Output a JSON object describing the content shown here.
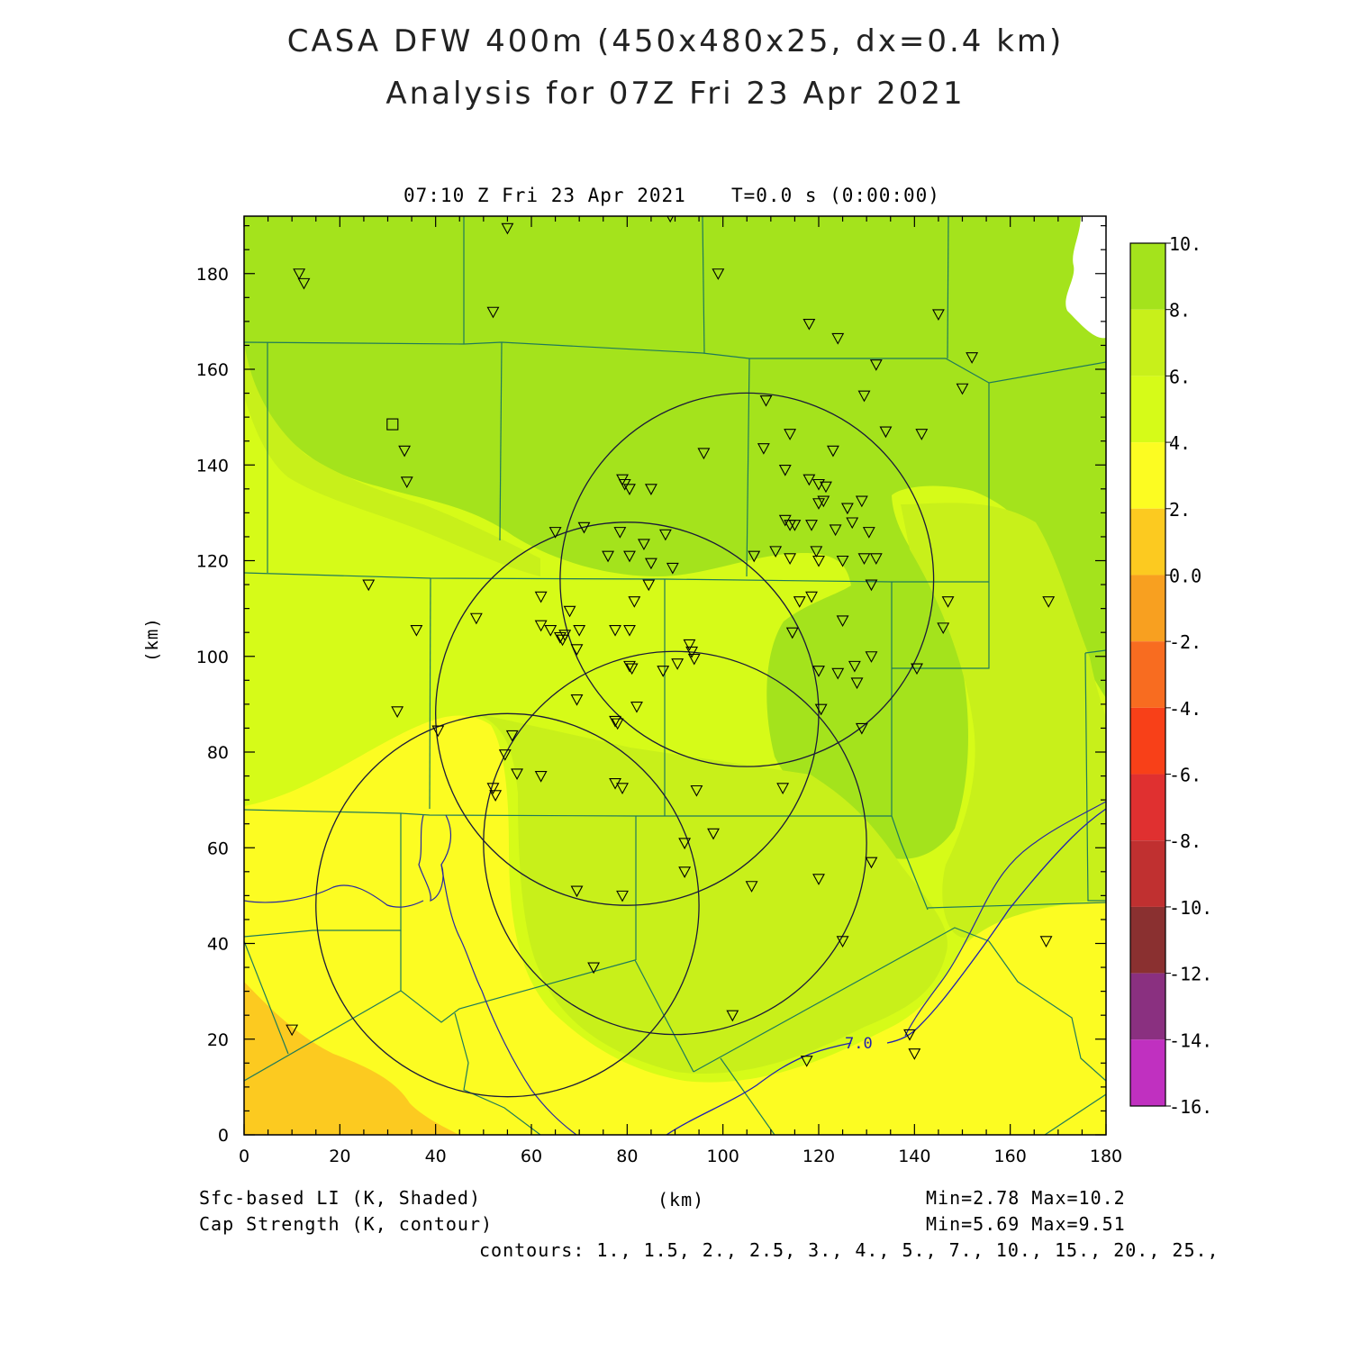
{
  "header": {
    "title_line1": "CASA DFW 400m (450x480x25, dx=0.4 km)",
    "title_line2": "Analysis for 07Z Fri 23 Apr 2021",
    "valid_time": "07:10 Z Fri 23 Apr 2021",
    "model_time": "T=0.0 s (0:00:00)"
  },
  "axes": {
    "x_label": "(km)",
    "y_label": "(km)",
    "x_ticks": [
      "0",
      "20",
      "40",
      "60",
      "80",
      "100",
      "120",
      "140",
      "160",
      "180"
    ],
    "y_ticks": [
      "0",
      "20",
      "40",
      "60",
      "80",
      "100",
      "120",
      "140",
      "160",
      "180"
    ],
    "x_range": [
      0,
      180
    ],
    "y_range": [
      0,
      192
    ]
  },
  "colorbar": {
    "labels": [
      "10.",
      "8.",
      "6.",
      "4.",
      "2.",
      "0.0",
      "-2.",
      "-4.",
      "-6.",
      "-8.",
      "-10.",
      "-12.",
      "-14.",
      "-16."
    ],
    "colors": [
      "#a4e31c",
      "#c8f01a",
      "#d6fb18",
      "#fcfc22",
      "#fcca20",
      "#f8a020",
      "#f86c20",
      "#f84018",
      "#e03030",
      "#c03030",
      "#8a3030",
      "#8a3080",
      "#c030c0",
      "#e040e0"
    ]
  },
  "footer": {
    "field1": "Sfc-based LI (K, Shaded)",
    "field2": "Cap Strength (K, contour)",
    "xunit": "(km)",
    "minmax1": "Min=2.78 Max=10.2",
    "minmax2": "Min=5.69 Max=9.51",
    "contours": "contours: 1., 1.5, 2., 2.5, 3., 4., 5., 7., 10., 15., 20., 25.,"
  },
  "contour_label": "7.0",
  "radar_circles_km": [
    {
      "cx": 105,
      "cy": 116,
      "r": 39
    },
    {
      "cx": 80,
      "cy": 88,
      "r": 40
    },
    {
      "cx": 55,
      "cy": 48,
      "r": 40
    },
    {
      "cx": 90,
      "cy": 61,
      "r": 40
    }
  ],
  "stations_km": [
    [
      11.5,
      180
    ],
    [
      12.5,
      178
    ],
    [
      55,
      189.5
    ],
    [
      89,
      192
    ],
    [
      99,
      180
    ],
    [
      52,
      172
    ],
    [
      118,
      169.5
    ],
    [
      124,
      166.5
    ],
    [
      145,
      171.5
    ],
    [
      152,
      162.5
    ],
    [
      132,
      161
    ],
    [
      150,
      156
    ],
    [
      109,
      153.5
    ],
    [
      129.5,
      154.5
    ],
    [
      33.5,
      143
    ],
    [
      34,
      136.5
    ],
    [
      96,
      142.5
    ],
    [
      108.5,
      143.5
    ],
    [
      114,
      146.5
    ],
    [
      123,
      143
    ],
    [
      134,
      147
    ],
    [
      141.5,
      146.5
    ],
    [
      79,
      137
    ],
    [
      79.5,
      136
    ],
    [
      80.5,
      135
    ],
    [
      85,
      135
    ],
    [
      113,
      139
    ],
    [
      118,
      137
    ],
    [
      120,
      136
    ],
    [
      121.5,
      135.5
    ],
    [
      120,
      132
    ],
    [
      121,
      132.5
    ],
    [
      126,
      131
    ],
    [
      129,
      132.5
    ],
    [
      113,
      128.5
    ],
    [
      114,
      127.5
    ],
    [
      115,
      127.5
    ],
    [
      118.5,
      127.5
    ],
    [
      123.5,
      126.5
    ],
    [
      127,
      128
    ],
    [
      130.5,
      126
    ],
    [
      65,
      126
    ],
    [
      71,
      127
    ],
    [
      78.5,
      126
    ],
    [
      88,
      125.5
    ],
    [
      83.5,
      123.5
    ],
    [
      76,
      121
    ],
    [
      80.5,
      121
    ],
    [
      85,
      119.5
    ],
    [
      89.5,
      118.5
    ],
    [
      106.5,
      121
    ],
    [
      111,
      122
    ],
    [
      114,
      120.5
    ],
    [
      119.5,
      122
    ],
    [
      120,
      120
    ],
    [
      125,
      120
    ],
    [
      129.5,
      120.5
    ],
    [
      132,
      120.5
    ],
    [
      131,
      115
    ],
    [
      84.5,
      115
    ],
    [
      26,
      115
    ],
    [
      62,
      112.5
    ],
    [
      81.5,
      111.5
    ],
    [
      116,
      111.5
    ],
    [
      118.5,
      112.5
    ],
    [
      147,
      111.5
    ],
    [
      168,
      111.5
    ],
    [
      36,
      105.5
    ],
    [
      48.5,
      108
    ],
    [
      62,
      106.5
    ],
    [
      64,
      105.5
    ],
    [
      66,
      104
    ],
    [
      66.5,
      103.5
    ],
    [
      67,
      104.5
    ],
    [
      68,
      109.5
    ],
    [
      70,
      105.5
    ],
    [
      69.5,
      101.5
    ],
    [
      77.5,
      105.5
    ],
    [
      80.5,
      105.5
    ],
    [
      114.5,
      105
    ],
    [
      125,
      107.5
    ],
    [
      146,
      106
    ],
    [
      93,
      102.5
    ],
    [
      93.5,
      101
    ],
    [
      94,
      99.5
    ],
    [
      90.5,
      98.5
    ],
    [
      87.5,
      97
    ],
    [
      80.5,
      98
    ],
    [
      81,
      97.5
    ],
    [
      120,
      97
    ],
    [
      124,
      96.5
    ],
    [
      127.5,
      98
    ],
    [
      128,
      94.5
    ],
    [
      131,
      100
    ],
    [
      140.5,
      97.5
    ],
    [
      69.5,
      91
    ],
    [
      82,
      89.5
    ],
    [
      120.5,
      89
    ],
    [
      32,
      88.5
    ],
    [
      40.5,
      84.5
    ],
    [
      77.5,
      86.5
    ],
    [
      78,
      86
    ],
    [
      56,
      83.5
    ],
    [
      54.5,
      79.5
    ],
    [
      129,
      85
    ],
    [
      57,
      75.5
    ],
    [
      62,
      75
    ],
    [
      77.5,
      73.5
    ],
    [
      79,
      72.5
    ],
    [
      94.5,
      72
    ],
    [
      112.5,
      72.5
    ],
    [
      52,
      72.5
    ],
    [
      52.5,
      71
    ],
    [
      98,
      63
    ],
    [
      92,
      61
    ],
    [
      131,
      57
    ],
    [
      92,
      55
    ],
    [
      69.5,
      51
    ],
    [
      79,
      50
    ],
    [
      106,
      52
    ],
    [
      120,
      53.5
    ],
    [
      125,
      40.5
    ],
    [
      167.5,
      40.5
    ],
    [
      73,
      35
    ],
    [
      102,
      25
    ],
    [
      10,
      22
    ],
    [
      117.5,
      15.5
    ],
    [
      139,
      21
    ],
    [
      140,
      17
    ]
  ],
  "square_marker_km": [
    31,
    148.5
  ]
}
